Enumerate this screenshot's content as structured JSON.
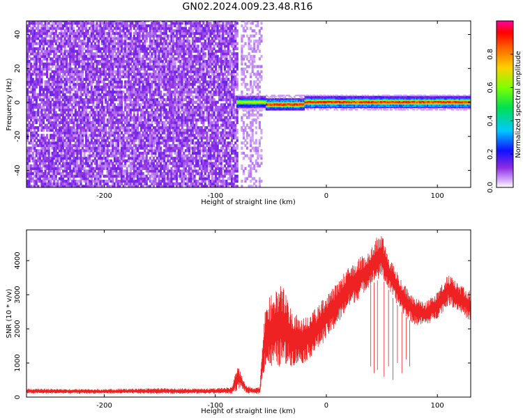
{
  "title": "GN02.2024.009.23.48.R16",
  "chart_data": [
    {
      "type": "heatmap",
      "title": "",
      "xlabel": "Height of straight line (km)",
      "ylabel": "Frequency (Hz)",
      "xlim": [
        -270,
        130
      ],
      "ylim": [
        -50,
        48
      ],
      "xticks": [
        -200,
        -100,
        0,
        100
      ],
      "yticks": [
        -40,
        -20,
        0,
        20,
        40
      ],
      "colorbar": {
        "label": "Normalized spectral amplitude",
        "range": [
          0,
          1
        ],
        "ticks": [
          "0.0",
          "0.2",
          "0.4",
          "0.6",
          "0.8"
        ],
        "tick_values": [
          0,
          0.2,
          0.4,
          0.6,
          0.8
        ]
      },
      "regions": [
        {
          "x_start": -270,
          "x_end": -81,
          "freq_range": [
            -50,
            48
          ],
          "mean_amplitude": 0.1,
          "description_level": "broadband noise"
        },
        {
          "x_start": -77,
          "x_end": -58,
          "freq_range": [
            -50,
            48
          ],
          "mean_amplitude": 0.08
        },
        {
          "x_start": -81,
          "x_end": 130,
          "freq_center": 0,
          "freq_halfwidth": 3,
          "peak_amplitude": 0.95
        }
      ]
    },
    {
      "type": "line",
      "title": "",
      "xlabel": "Height of straight line (km)",
      "ylabel": "SNR (10 * v/v)",
      "xlim": [
        -270,
        130
      ],
      "ylim": [
        0,
        4900
      ],
      "xticks": [
        -200,
        -100,
        0,
        100
      ],
      "yticks": [
        0,
        1000,
        2000,
        3000,
        4000
      ],
      "color": "#ee2222",
      "envelope": {
        "x": [
          -270,
          -200,
          -150,
          -100,
          -85,
          -80,
          -77,
          -72,
          -65,
          -60,
          -55,
          -50,
          -40,
          -30,
          -20,
          -10,
          0,
          10,
          20,
          30,
          40,
          45,
          50,
          55,
          60,
          70,
          80,
          90,
          100,
          110,
          120,
          130
        ],
        "low": [
          100,
          100,
          100,
          100,
          100,
          200,
          300,
          100,
          100,
          100,
          900,
          800,
          900,
          900,
          1000,
          1300,
          1700,
          2100,
          2600,
          2900,
          3300,
          3400,
          3500,
          3200,
          2900,
          2400,
          2100,
          2100,
          2300,
          2700,
          2500,
          2200
        ],
        "high": [
          250,
          240,
          260,
          260,
          300,
          950,
          700,
          350,
          250,
          300,
          2700,
          3000,
          3300,
          2500,
          2300,
          2600,
          3000,
          3400,
          3800,
          4100,
          4300,
          4700,
          4800,
          4200,
          3900,
          3300,
          2900,
          2800,
          3100,
          3600,
          3300,
          3100
        ]
      },
      "dropouts": [
        {
          "x": 40,
          "min": 900
        },
        {
          "x": 43,
          "min": 700
        },
        {
          "x": 46,
          "min": 800
        },
        {
          "x": 52,
          "min": 600
        },
        {
          "x": 56,
          "min": 900
        },
        {
          "x": 60,
          "min": 500
        },
        {
          "x": 64,
          "min": 1000
        },
        {
          "x": 68,
          "min": 700
        },
        {
          "x": 72,
          "min": 1100
        },
        {
          "x": 75,
          "min": 900
        }
      ]
    }
  ]
}
